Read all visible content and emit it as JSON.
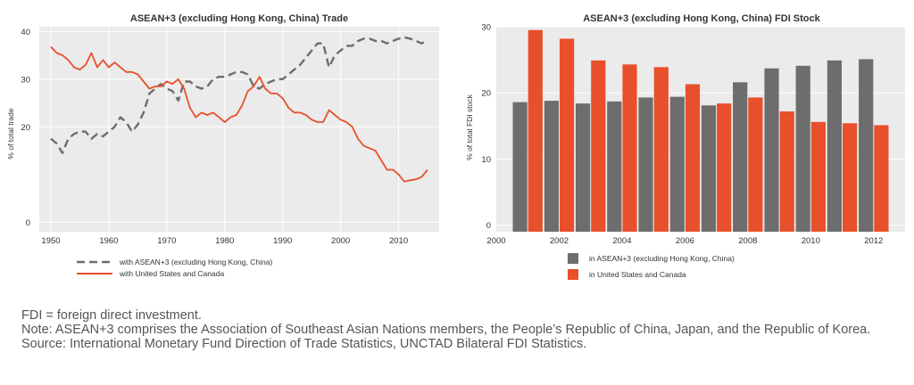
{
  "colors": {
    "panel_bg": "#ebebeb",
    "grid": "#ffffff",
    "gray_series": "#6d6d6d",
    "orange_series": "#e8502b",
    "text": "#333333"
  },
  "chart_data": [
    {
      "type": "line",
      "title": "ASEAN+3 (excluding Hong Kong, China) Trade",
      "xlabel": "",
      "ylabel": "% of total trade",
      "xlim": [
        1948,
        2017
      ],
      "ylim": [
        -2,
        41
      ],
      "xticks": [
        1950,
        1960,
        1970,
        1980,
        1990,
        2000,
        2010
      ],
      "yticks": [
        0,
        20,
        30,
        40
      ],
      "grid": true,
      "legend_position": "bottom",
      "x": [
        1950,
        1951,
        1952,
        1953,
        1954,
        1955,
        1956,
        1957,
        1958,
        1959,
        1960,
        1961,
        1962,
        1963,
        1964,
        1965,
        1966,
        1967,
        1968,
        1969,
        1970,
        1971,
        1972,
        1973,
        1974,
        1975,
        1976,
        1977,
        1978,
        1979,
        1980,
        1981,
        1982,
        1983,
        1984,
        1985,
        1986,
        1987,
        1988,
        1989,
        1990,
        1991,
        1992,
        1993,
        1994,
        1995,
        1996,
        1997,
        1998,
        1999,
        2000,
        2001,
        2002,
        2003,
        2004,
        2005,
        2006,
        2007,
        2008,
        2009,
        2010,
        2011,
        2012,
        2013,
        2014,
        2015
      ],
      "series": [
        {
          "name": "with ASEAN+3 (excluding Hong Kong, China)",
          "style": "dashed",
          "color": "#6d6d6d",
          "values": [
            17.5,
            16.5,
            14.5,
            17.5,
            18.5,
            19,
            19,
            17.5,
            18.5,
            18,
            19,
            20,
            22,
            21,
            19,
            20.5,
            23,
            27,
            28,
            29,
            28,
            27.5,
            25.5,
            29.5,
            29.5,
            28.5,
            28,
            28.5,
            30,
            30.5,
            30.5,
            31,
            31.5,
            31.5,
            31,
            28.5,
            28,
            29,
            29.5,
            30,
            30,
            31,
            32,
            33,
            34.5,
            36,
            37.5,
            37.5,
            32.5,
            35,
            36,
            37,
            37,
            38,
            38.5,
            38.5,
            38,
            38,
            37.5,
            38,
            38.5,
            38.8,
            38.5,
            38,
            37.5,
            38.2
          ]
        },
        {
          "name": "with United States and Canada",
          "style": "solid",
          "color": "#e8502b",
          "values": [
            36.8,
            35.5,
            35,
            34,
            32.5,
            32,
            33,
            35.5,
            32.5,
            34,
            32.5,
            33.5,
            32.5,
            31.5,
            31.5,
            31,
            29.5,
            28,
            28.5,
            28.5,
            29.5,
            29,
            30,
            28,
            24,
            22,
            23,
            22.5,
            23,
            22,
            21,
            22,
            22.5,
            24.5,
            27.5,
            28.5,
            30.5,
            28,
            27,
            27,
            26,
            24,
            23,
            23,
            22.5,
            21.5,
            21,
            21,
            23.5,
            22.5,
            21.5,
            21,
            20,
            17.5,
            16,
            15.5,
            15,
            13,
            11,
            11,
            10,
            8.5,
            8.8,
            9,
            9.5,
            11
          ]
        }
      ]
    },
    {
      "type": "bar",
      "title": "ASEAN+3 (excluding Hong Kong, China) FDI Stock",
      "xlabel": "",
      "ylabel": "% of total FDI stock",
      "xlim": [
        2000,
        2013
      ],
      "ylim": [
        -1,
        30
      ],
      "xticks": [
        2000,
        2002,
        2004,
        2006,
        2008,
        2010,
        2012
      ],
      "yticks": [
        0,
        10,
        20,
        30
      ],
      "grid": true,
      "legend_position": "bottom",
      "categories": [
        2001,
        2002,
        2003,
        2004,
        2005,
        2006,
        2007,
        2008,
        2009,
        2010,
        2011,
        2012
      ],
      "series": [
        {
          "name": "in ASEAN+3 (excluding Hong Kong, China)",
          "color": "#6d6d6d",
          "values": [
            18.6,
            18.8,
            18.4,
            18.7,
            19.3,
            19.4,
            18.1,
            21.6,
            23.7,
            24.1,
            24.9,
            25.1
          ]
        },
        {
          "name": "in United States and Canada",
          "color": "#e8502b",
          "values": [
            29.5,
            28.2,
            24.9,
            24.3,
            23.9,
            21.3,
            18.4,
            19.3,
            17.2,
            15.6,
            15.4,
            15.1
          ]
        }
      ]
    }
  ],
  "notes": [
    "FDI = foreign direct investment.",
    "Note: ASEAN+3 comprises the Association of Southeast Asian Nations members, the People’s Republic of China, Japan, and the Republic of Korea.",
    "Source: International Monetary Fund Direction of Trade Statistics, UNCTAD Bilateral FDI Statistics."
  ]
}
